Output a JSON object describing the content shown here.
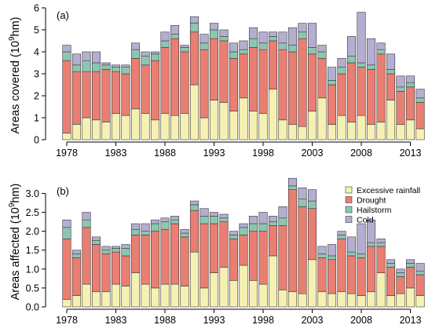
{
  "chart_data": [
    {
      "type": "bar",
      "stacked": true,
      "panel_tag": "(a)",
      "ylabel_main": "Areas covered (10",
      "ylabel_sup": "9",
      "ylabel_tail": "hm)",
      "ylim": [
        0,
        6
      ],
      "yticks": [
        0,
        1,
        2,
        3,
        4,
        5,
        6
      ],
      "ytick_labels": [
        "0",
        "1",
        "2",
        "3",
        "4",
        "5",
        "6"
      ],
      "x": [
        1978,
        1979,
        1980,
        1981,
        1982,
        1983,
        1984,
        1985,
        1986,
        1987,
        1988,
        1989,
        1990,
        1991,
        1992,
        1993,
        1994,
        1995,
        1996,
        1997,
        1998,
        1999,
        2000,
        2001,
        2002,
        2003,
        2004,
        2005,
        2006,
        2007,
        2008,
        2009,
        2010,
        2011,
        2012,
        2013,
        2014
      ],
      "xtick_labels": [
        "1978",
        "1983",
        "1988",
        "1993",
        "1998",
        "2003",
        "2008",
        "2013"
      ],
      "series": [
        {
          "name": "Excessive rainfall",
          "values": [
            0.3,
            0.7,
            1.0,
            0.9,
            0.8,
            1.2,
            1.1,
            1.4,
            1.2,
            0.9,
            1.2,
            1.1,
            1.2,
            2.5,
            1.0,
            1.8,
            1.7,
            1.3,
            1.9,
            1.3,
            1.2,
            2.3,
            0.9,
            0.7,
            0.6,
            1.3,
            1.9,
            0.7,
            1.1,
            0.8,
            1.1,
            0.7,
            0.8,
            1.8,
            0.7,
            0.9,
            0.5
          ]
        },
        {
          "name": "Drought",
          "values": [
            3.3,
            2.4,
            2.1,
            2.2,
            2.4,
            1.9,
            1.9,
            2.3,
            2.2,
            2.7,
            3.0,
            3.5,
            2.8,
            2.4,
            3.1,
            2.8,
            2.8,
            2.4,
            2.0,
            2.9,
            2.9,
            2.2,
            3.2,
            3.3,
            4.0,
            2.6,
            1.8,
            1.8,
            1.9,
            2.7,
            2.2,
            2.5,
            3.1,
            1.2,
            1.5,
            1.5,
            1.2
          ]
        },
        {
          "name": "Hailstorm",
          "values": [
            0.4,
            0.3,
            0.5,
            0.4,
            0.2,
            0.2,
            0.3,
            0.4,
            0.4,
            0.3,
            0.3,
            0.2,
            0.2,
            0.4,
            0.3,
            0.4,
            0.2,
            0.3,
            0.2,
            0.4,
            0.3,
            0.2,
            0.3,
            0.3,
            0.3,
            0.3,
            0.3,
            0.2,
            0.3,
            0.3,
            0.2,
            0.2,
            0.2,
            0.2,
            0.2,
            0.2,
            0.2
          ]
        },
        {
          "name": "Cold",
          "values": [
            0.3,
            0.5,
            0.4,
            0.5,
            0.1,
            0.1,
            0.1,
            0.3,
            0.2,
            0.1,
            0.4,
            0.4,
            0.1,
            0.3,
            0.4,
            0.3,
            0.3,
            0.4,
            0.4,
            0.5,
            0.5,
            0.2,
            0.5,
            0.8,
            0.4,
            1.1,
            0.3,
            0.6,
            0.4,
            0.9,
            2.3,
            1.2,
            0.3,
            0.7,
            0.5,
            0.3,
            0.4
          ]
        }
      ]
    },
    {
      "type": "bar",
      "stacked": true,
      "panel_tag": "(b)",
      "ylabel_main": "Areas affected (10",
      "ylabel_sup": "9",
      "ylabel_tail": "hm)",
      "ylim": [
        0,
        3.3
      ],
      "yticks": [
        0,
        0.5,
        1.0,
        1.5,
        2.0,
        2.5,
        3.0
      ],
      "ytick_labels": [
        "0.0",
        "0.5",
        "1.0",
        "1.5",
        "2.0",
        "2.5",
        "3.0"
      ],
      "x": [
        1978,
        1979,
        1980,
        1981,
        1982,
        1983,
        1984,
        1985,
        1986,
        1987,
        1988,
        1989,
        1990,
        1991,
        1992,
        1993,
        1994,
        1995,
        1996,
        1997,
        1998,
        1999,
        2000,
        2001,
        2002,
        2003,
        2004,
        2005,
        2006,
        2007,
        2008,
        2009,
        2010,
        2011,
        2012,
        2013,
        2014
      ],
      "xtick_labels": [
        "1978",
        "1983",
        "1988",
        "1993",
        "1998",
        "2003",
        "2008",
        "2013"
      ],
      "legend": {
        "placement": "top-right",
        "entries": [
          "Excessive rainfall",
          "Drought",
          "Hailstorm",
          "Cold"
        ]
      },
      "series": [
        {
          "name": "Excessive rainfall",
          "values": [
            0.2,
            0.3,
            0.6,
            0.4,
            0.4,
            0.6,
            0.55,
            0.9,
            0.6,
            0.5,
            0.6,
            0.6,
            0.55,
            1.45,
            0.5,
            0.9,
            1.05,
            0.7,
            1.1,
            0.7,
            0.6,
            1.35,
            0.45,
            0.4,
            0.35,
            1.25,
            0.4,
            0.35,
            0.4,
            0.35,
            0.3,
            0.4,
            0.9,
            0.3,
            0.35,
            0.5,
            0.3
          ]
        },
        {
          "name": "Drought",
          "values": [
            1.6,
            1.0,
            1.5,
            1.25,
            1.0,
            0.85,
            0.8,
            1.0,
            1.3,
            1.5,
            1.45,
            1.6,
            1.3,
            1.1,
            1.7,
            1.3,
            1.2,
            1.1,
            0.8,
            1.3,
            1.4,
            0.8,
            1.7,
            2.7,
            2.3,
            1.35,
            0.9,
            0.9,
            1.4,
            1.0,
            1.0,
            1.2,
            0.7,
            0.75,
            0.45,
            0.55,
            0.55
          ]
        },
        {
          "name": "Hailstorm",
          "values": [
            0.3,
            0.1,
            0.2,
            0.1,
            0.1,
            0.1,
            0.2,
            0.15,
            0.1,
            0.2,
            0.2,
            0.1,
            0.1,
            0.15,
            0.2,
            0.2,
            0.1,
            0.1,
            0.2,
            0.2,
            0.2,
            0.1,
            0.2,
            0.1,
            0.2,
            0.2,
            0.1,
            0.1,
            0.1,
            0.1,
            0.1,
            0.1,
            0.1,
            0.1,
            0.1,
            0.1,
            0.1
          ]
        },
        {
          "name": "Cold",
          "values": [
            0.2,
            0.1,
            0.2,
            0.1,
            0.1,
            0.05,
            0.1,
            0.15,
            0.2,
            0.1,
            0.1,
            0.1,
            0.1,
            0.1,
            0.2,
            0.1,
            0.1,
            0.1,
            0.1,
            0.2,
            0.3,
            0.15,
            0.3,
            0.2,
            0.3,
            0.3,
            0.2,
            0.3,
            0.1,
            0.4,
            0.8,
            0.6,
            0.1,
            0.1,
            0.1,
            0.1,
            0.2
          ]
        }
      ]
    }
  ],
  "colors": {
    "Excessive rainfall": "#f6f1b2",
    "Drought": "#e97e72",
    "Hailstorm": "#8cc6b2",
    "Cold": "#b4aed0",
    "stroke": "#3a3a3a",
    "axis": "#000000"
  }
}
